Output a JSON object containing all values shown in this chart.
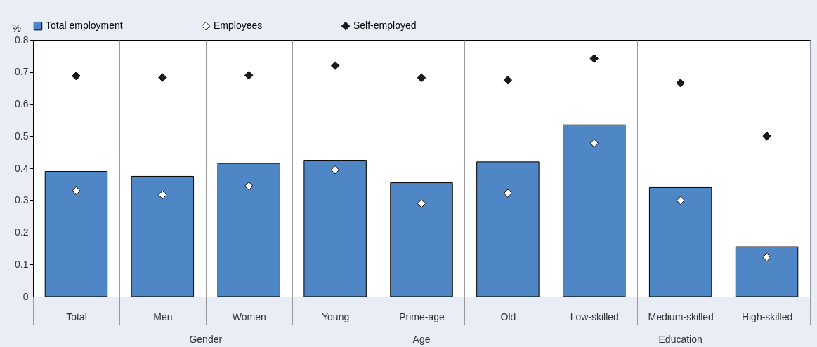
{
  "chart_data": {
    "type": "bar",
    "ylabel": "%",
    "categories": [
      "Total",
      "Men",
      "Women",
      "Young",
      "Prime-age",
      "Old",
      "Low-skilled",
      "Medium-skilled",
      "High-skilled"
    ],
    "series": [
      {
        "name": "Total employment",
        "color": "#4e86c6",
        "values": [
          0.39,
          0.375,
          0.415,
          0.425,
          0.355,
          0.42,
          0.535,
          0.34,
          0.155
        ]
      },
      {
        "name": "Employees",
        "type": "scatter",
        "color": "#ffffff",
        "values": [
          0.33,
          0.317,
          0.345,
          0.395,
          0.29,
          0.322,
          0.478,
          0.3,
          0.122
        ]
      },
      {
        "name": "Self-employed",
        "type": "scatter",
        "color": "#1a1a1a",
        "values": [
          0.688,
          0.683,
          0.69,
          0.72,
          0.682,
          0.675,
          0.742,
          0.666,
          0.5
        ]
      }
    ],
    "annotations": [
      "Gender",
      "Age",
      "Education"
    ],
    "ylim": [
      0,
      0.8
    ],
    "yticks": [
      0,
      0.1,
      0.2,
      0.3,
      0.4,
      0.5,
      0.6,
      0.7,
      0.8
    ],
    "grid": "x",
    "legend": "top",
    "marker": "diamond"
  }
}
